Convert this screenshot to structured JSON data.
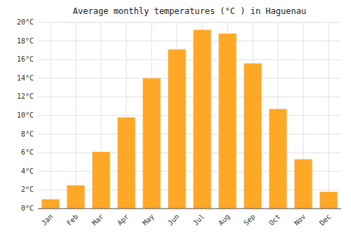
{
  "chart_data": {
    "type": "bar",
    "title": "Average monthly temperatures (°C ) in Haguenau",
    "categories": [
      "Jan",
      "Feb",
      "Mar",
      "Apr",
      "May",
      "Jun",
      "Jul",
      "Aug",
      "Sep",
      "Oct",
      "Nov",
      "Dec"
    ],
    "values": [
      1.0,
      2.5,
      6.1,
      9.8,
      14.0,
      17.1,
      19.2,
      18.8,
      15.6,
      10.7,
      5.3,
      1.8
    ],
    "color": "#FFA726",
    "ylim": [
      0,
      20
    ],
    "yticks": [
      {
        "value": 0,
        "label": "0°C"
      },
      {
        "value": 2,
        "label": "2°C"
      },
      {
        "value": 4,
        "label": "4°C"
      },
      {
        "value": 6,
        "label": "6°C"
      },
      {
        "value": 8,
        "label": "8°C"
      },
      {
        "value": 10,
        "label": "10°C"
      },
      {
        "value": 12,
        "label": "12°C"
      },
      {
        "value": 14,
        "label": "14°C"
      },
      {
        "value": 16,
        "label": "16°C"
      },
      {
        "value": 18,
        "label": "18°C"
      },
      {
        "value": 20,
        "label": "20°C"
      }
    ],
    "grid": true
  }
}
